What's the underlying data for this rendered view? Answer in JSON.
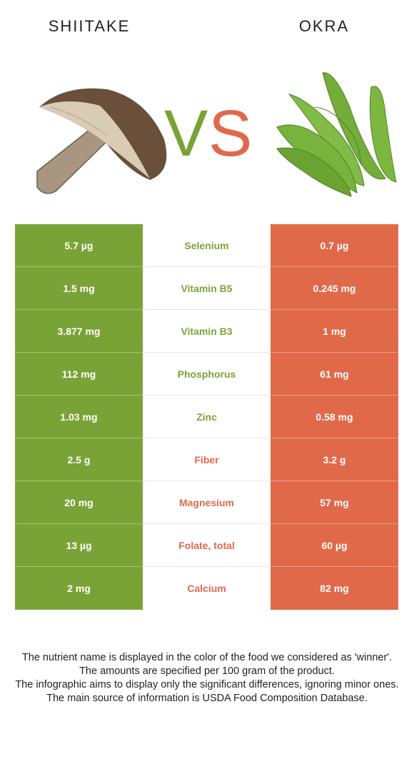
{
  "header": {
    "left_title": "SHIITAKE",
    "right_title": "OKRA",
    "vs_left": "V",
    "vs_right": "S"
  },
  "colors": {
    "left_food": "#7aa337",
    "right_food": "#e0694a"
  },
  "rows": [
    {
      "left": "5.7 µg",
      "nutrient": "Selenium",
      "right": "0.7 µg",
      "winner": "left"
    },
    {
      "left": "1.5 mg",
      "nutrient": "Vitamin B5",
      "right": "0.245 mg",
      "winner": "left"
    },
    {
      "left": "3.877 mg",
      "nutrient": "Vitamin B3",
      "right": "1 mg",
      "winner": "left"
    },
    {
      "left": "112 mg",
      "nutrient": "Phosphorus",
      "right": "61 mg",
      "winner": "left"
    },
    {
      "left": "1.03 mg",
      "nutrient": "Zinc",
      "right": "0.58 mg",
      "winner": "left"
    },
    {
      "left": "2.5 g",
      "nutrient": "Fiber",
      "right": "3.2 g",
      "winner": "right"
    },
    {
      "left": "20 mg",
      "nutrient": "Magnesium",
      "right": "57 mg",
      "winner": "right"
    },
    {
      "left": "13 µg",
      "nutrient": "Folate, total",
      "right": "60 µg",
      "winner": "right"
    },
    {
      "left": "2 mg",
      "nutrient": "Calcium",
      "right": "82 mg",
      "winner": "right"
    }
  ],
  "footer": {
    "line1": "The nutrient name is displayed in the color of the food we considered as 'winner'.",
    "line2": "The amounts are specified per 100 gram of the product.",
    "line3": "The infographic aims to display only the significant differences, ignoring minor ones.",
    "line4": "The main source of information is USDA Food Composition Database."
  }
}
